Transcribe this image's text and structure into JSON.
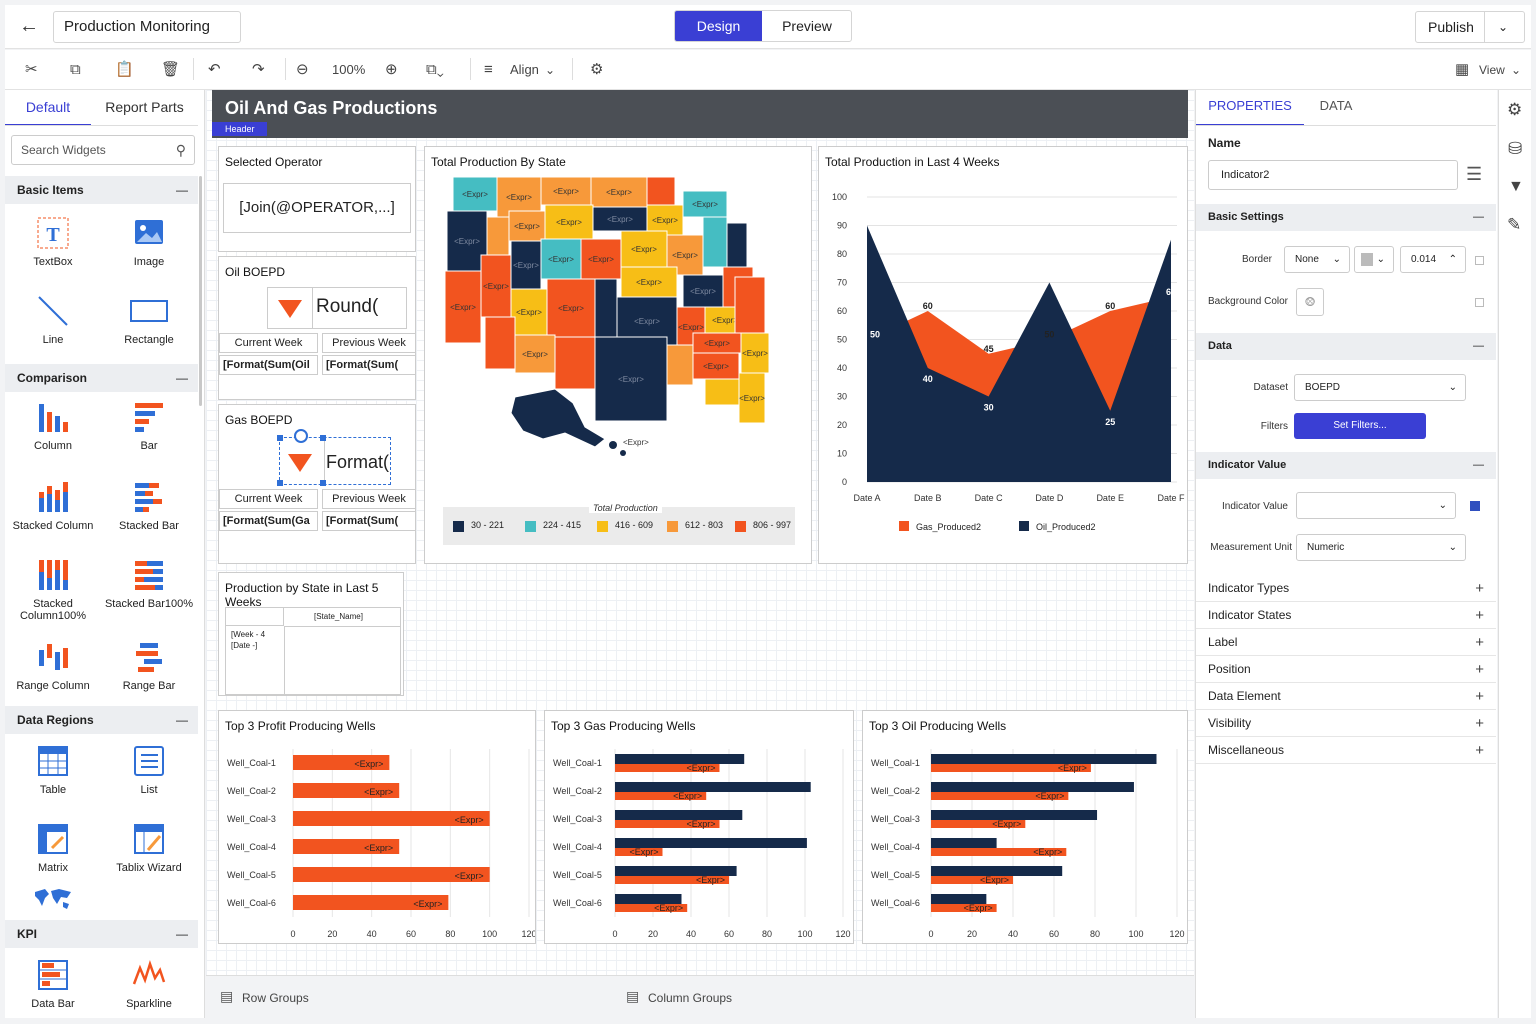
{
  "header": {
    "title": "Production Monitoring",
    "mode_design": "Design",
    "mode_preview": "Preview",
    "publish": "Publish"
  },
  "toolbar": {
    "zoom": "100%",
    "align": "Align",
    "view": "View"
  },
  "left": {
    "tab_default": "Default",
    "tab_report_parts": "Report Parts",
    "search_placeholder": "Search Widgets",
    "sections": {
      "basic": "Basic Items",
      "comparison": "Comparison",
      "data_regions": "Data Regions",
      "kpi": "KPI"
    },
    "widgets": {
      "textbox": "TextBox",
      "image": "Image",
      "line": "Line",
      "rectangle": "Rectangle",
      "column": "Column",
      "bar": "Bar",
      "stacked_column": "Stacked Column",
      "stacked_bar": "Stacked Bar",
      "stacked_column100": "Stacked Column100%",
      "stacked_bar100": "Stacked Bar100%",
      "range_column": "Range Column",
      "range_bar": "Range Bar",
      "table": "Table",
      "list": "List",
      "matrix": "Matrix",
      "tablix_wizard": "Tablix Wizard",
      "data_bar": "Data Bar",
      "sparkline": "Sparkline"
    }
  },
  "report": {
    "title": "Oil And Gas Productions",
    "header_tag": "Header",
    "selected_operator": {
      "title": "Selected Operator",
      "value": "[Join(@OPERATOR,...]"
    },
    "oil_boepd": {
      "title": "Oil BOEPD",
      "value": "Round(",
      "current_label": "Current Week",
      "previous_label": "Previous Week",
      "current_value": "[Format(Sum(Oil",
      "previous_value": "[Format(Sum("
    },
    "gas_boepd": {
      "title": "Gas BOEPD",
      "value": "Format(",
      "current_label": "Current Week",
      "previous_label": "Previous Week",
      "current_value": "[Format(Sum(Ga",
      "previous_value": "[Format(Sum("
    },
    "map": {
      "title": "Total Production By State",
      "expr": "<Expr>",
      "legend_title": "Total Production",
      "legend": [
        {
          "label": "30 - 221",
          "color": "#152a4a"
        },
        {
          "label": "224 - 415",
          "color": "#45bdc2"
        },
        {
          "label": "416 - 609",
          "color": "#f7be16"
        },
        {
          "label": "612 - 803",
          "color": "#f7993a"
        },
        {
          "label": "806 - 997",
          "color": "#f2541f"
        }
      ]
    },
    "weekly": {
      "title": "Total Production in Last 4 Weeks"
    },
    "by_state": {
      "title": "Production by State in Last 5 Weeks",
      "col_header": "[State_Name]",
      "row_header1": "[Week - 4",
      "row_header2": "[Date -]"
    },
    "wells_labels": [
      "Well_Coal-1",
      "Well_Coal-2",
      "Well_Coal-3",
      "Well_Coal-4",
      "Well_Coal-5",
      "Well_Coal-6"
    ],
    "expr": "<Expr>"
  },
  "bottom": {
    "row_groups": "Row Groups",
    "column_groups": "Column Groups"
  },
  "properties": {
    "tab_properties": "PROPERTIES",
    "tab_data": "DATA",
    "name_label": "Name",
    "name_value": "Indicator2",
    "basic_settings": "Basic Settings",
    "border_label": "Border",
    "border_value": "None",
    "border_width": "0.014",
    "bg_label": "Background Color",
    "data_section": "Data",
    "dataset_label": "Dataset",
    "dataset_value": "BOEPD",
    "filters_label": "Filters",
    "filters_button": "Set Filters...",
    "indicator_value_section": "Indicator Value",
    "indicator_value_label": "Indicator Value",
    "measurement_label": "Measurement Unit",
    "measurement_value": "Numeric",
    "collapsed": [
      "Indicator Types",
      "Indicator States",
      "Label",
      "Position",
      "Data Element",
      "Visibility",
      "Miscellaneous"
    ]
  },
  "colors": {
    "accent": "#3a3fd4",
    "navy": "#152a4a",
    "orange": "#f2541f"
  },
  "chart_data": [
    {
      "type": "area",
      "title": "Total Production in Last 4 Weeks",
      "categories": [
        "Date A",
        "Date B",
        "Date C",
        "Date D",
        "Date E",
        "Date F"
      ],
      "series": [
        {
          "name": "Gas_Produced2",
          "color": "#f2541f",
          "values": [
            50,
            60,
            45,
            50,
            60,
            65
          ]
        },
        {
          "name": "Oil_Produced2",
          "color": "#152a4a",
          "values": [
            90,
            40,
            30,
            70,
            25,
            85
          ]
        }
      ],
      "ylim": [
        0,
        100
      ],
      "yticks": [
        0,
        10,
        20,
        30,
        40,
        50,
        60,
        70,
        80,
        90,
        100
      ],
      "grid": true,
      "legend": "bottom"
    },
    {
      "type": "bar",
      "title": "Top 3 Profit Producing Wells",
      "categories": [
        "Well_Coal-1",
        "Well_Coal-2",
        "Well_Coal-3",
        "Well_Coal-4",
        "Well_Coal-5",
        "Well_Coal-6"
      ],
      "series": [
        {
          "color": "#f2541f",
          "values": [
            49,
            54,
            100,
            54,
            100,
            79
          ]
        }
      ],
      "xlim": [
        0,
        120
      ],
      "xticks": [
        0,
        20,
        40,
        60,
        80,
        100,
        120
      ]
    },
    {
      "type": "bar",
      "title": "Top 3 Gas Producing Wells",
      "categories": [
        "Well_Coal-1",
        "Well_Coal-2",
        "Well_Coal-3",
        "Well_Coal-4",
        "Well_Coal-5",
        "Well_Coal-6"
      ],
      "series": [
        {
          "color": "#152a4a",
          "values": [
            68,
            103,
            67,
            101,
            64,
            35
          ]
        },
        {
          "color": "#f2541f",
          "values": [
            55,
            48,
            55,
            25,
            60,
            38
          ]
        }
      ],
      "xlim": [
        0,
        120
      ],
      "xticks": [
        0,
        20,
        40,
        60,
        80,
        100,
        120
      ]
    },
    {
      "type": "bar",
      "title": "Top 3 Oil Producing Wells",
      "categories": [
        "Well_Coal-1",
        "Well_Coal-2",
        "Well_Coal-3",
        "Well_Coal-4",
        "Well_Coal-5",
        "Well_Coal-6"
      ],
      "series": [
        {
          "color": "#152a4a",
          "values": [
            110,
            99,
            81,
            32,
            64,
            27
          ]
        },
        {
          "color": "#f2541f",
          "values": [
            78,
            67,
            46,
            66,
            40,
            32
          ]
        }
      ],
      "xlim": [
        0,
        120
      ],
      "xticks": [
        0,
        20,
        40,
        60,
        80,
        100,
        120
      ]
    }
  ]
}
